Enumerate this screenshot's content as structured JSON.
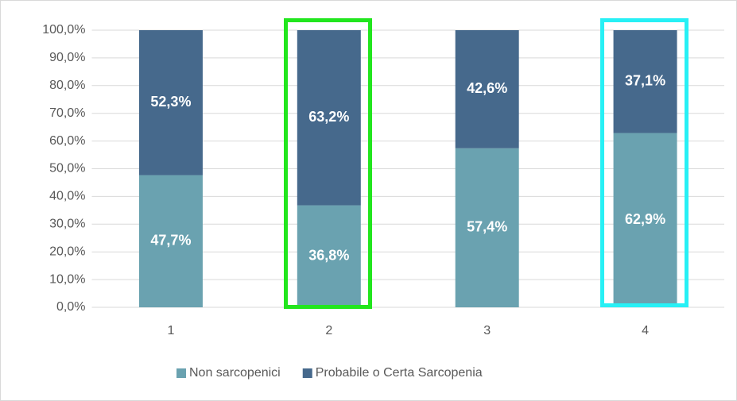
{
  "chart_data": {
    "type": "stacked_bar",
    "categories": [
      "1",
      "2",
      "3",
      "4"
    ],
    "series": [
      {
        "name": "Non sarcopenici",
        "color": "#6aa2b0",
        "values": [
          47.7,
          36.8,
          57.4,
          62.9
        ],
        "value_labels": [
          "47,7%",
          "36,8%",
          "57,4%",
          "62,9%"
        ]
      },
      {
        "name": "Probabile o Certa Sarcopenia",
        "color": "#46698c",
        "values": [
          52.3,
          63.2,
          42.6,
          37.1
        ],
        "value_labels": [
          "52,3%",
          "63,2%",
          "42,6%",
          "37,1%"
        ]
      }
    ],
    "ylim": [
      0,
      100
    ],
    "yticks": [
      {
        "value": 0,
        "label": "0,0%"
      },
      {
        "value": 10,
        "label": "10,0%"
      },
      {
        "value": 20,
        "label": "20,0%"
      },
      {
        "value": 30,
        "label": "30,0%"
      },
      {
        "value": 40,
        "label": "40,0%"
      },
      {
        "value": 50,
        "label": "50,0%"
      },
      {
        "value": 60,
        "label": "60,0%"
      },
      {
        "value": 70,
        "label": "70,0%"
      },
      {
        "value": 80,
        "label": "80,0%"
      },
      {
        "value": 90,
        "label": "90,0%"
      },
      {
        "value": 100,
        "label": "100,0%"
      }
    ],
    "grid": true,
    "legend": "bottom"
  }
}
